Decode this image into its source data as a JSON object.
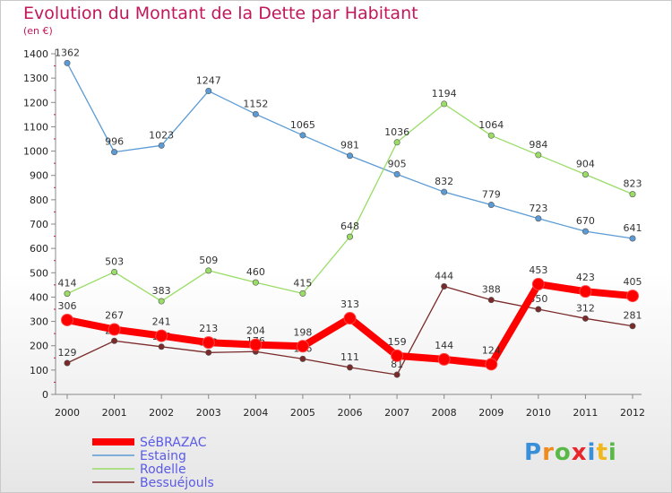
{
  "chart_data": {
    "type": "line",
    "title": "Evolution du Montant de la Dette par Habitant",
    "subtitle": "(en €)",
    "x": [
      "2000",
      "2001",
      "2002",
      "2003",
      "2004",
      "2005",
      "2006",
      "2007",
      "2008",
      "2009",
      "2010",
      "2011",
      "2012"
    ],
    "ylim": [
      0,
      1400
    ],
    "yticks": [
      0,
      100,
      200,
      300,
      400,
      500,
      600,
      700,
      800,
      900,
      1000,
      1100,
      1200,
      1300,
      1400
    ],
    "grid": false,
    "legend_position": "bottom-left",
    "series": [
      {
        "name": "SéBRAZAC",
        "color": "#ff0000",
        "values": [
          306,
          267,
          241,
          213,
          204,
          198,
          313,
          159,
          144,
          124,
          453,
          423,
          405
        ],
        "labels": [
          "306",
          "267",
          "241",
          "213",
          "204",
          "198",
          "313",
          "159",
          "144",
          "124",
          "453",
          "423",
          "405"
        ]
      },
      {
        "name": "Estaing",
        "color": "#5b9bd5",
        "values": [
          1362,
          996,
          1023,
          1247,
          1152,
          1065,
          981,
          905,
          832,
          779,
          723,
          670,
          641
        ],
        "labels": [
          "1362",
          "996",
          "1023",
          "1247",
          "1152",
          "1065",
          "981",
          "905",
          "832",
          "779",
          "723",
          "670",
          "641"
        ]
      },
      {
        "name": "Rodelle",
        "color": "#99dd66",
        "values": [
          414,
          503,
          383,
          509,
          460,
          415,
          648,
          1036,
          1194,
          1064,
          984,
          904,
          823
        ],
        "labels": [
          "414",
          "503",
          "383",
          "509",
          "460",
          "415",
          "648",
          "1036",
          "1194",
          "1064",
          "984",
          "904",
          "823"
        ]
      },
      {
        "name": "Bessuéjouls",
        "color": "#7a2a2a",
        "values": [
          129,
          220,
          196,
          172,
          176,
          146,
          111,
          81,
          444,
          388,
          350,
          312,
          281
        ],
        "labels": [
          "129",
          "220",
          "196",
          "172",
          "176",
          "146",
          "111",
          "81",
          "444",
          "388",
          "350",
          "312",
          "281"
        ]
      }
    ]
  },
  "logo": {
    "letters": [
      "P",
      "r",
      "o",
      "x",
      "i",
      "t",
      "i"
    ],
    "colors": [
      "#3a8fd9",
      "#f08a1e",
      "#58b947",
      "#e8262c",
      "#3a8fd9",
      "#f0b81e",
      "#58b947"
    ]
  }
}
